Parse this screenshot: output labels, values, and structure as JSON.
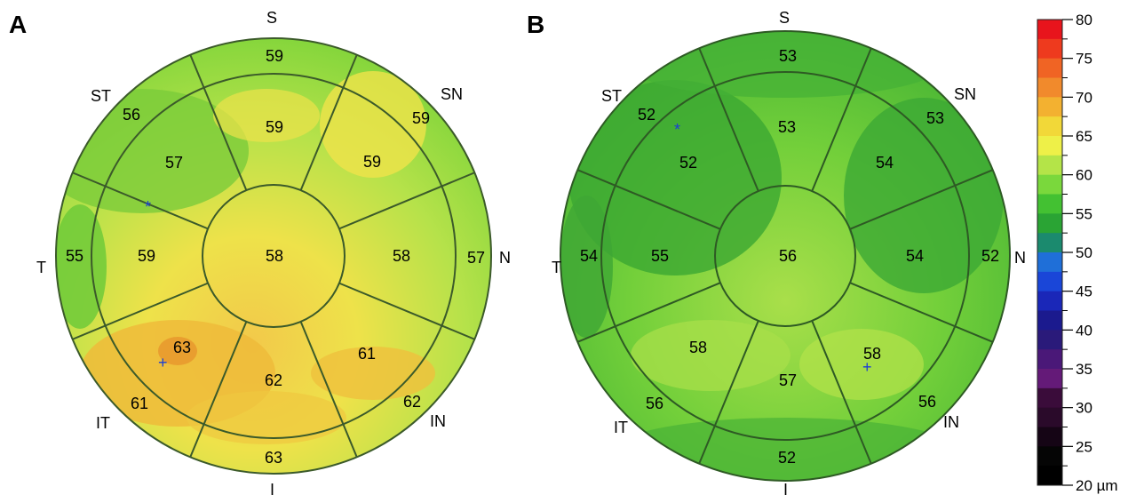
{
  "panels": [
    {
      "letter": "A",
      "directions": {
        "S": "S",
        "SN": "SN",
        "N": "N",
        "IN": "IN",
        "I": "I",
        "IT": "IT",
        "T": "T",
        "ST": "ST"
      },
      "center": "58",
      "inner": [
        "59",
        "59",
        "58",
        "61",
        "62",
        "63",
        "59",
        "57"
      ],
      "outer": [
        "59",
        "59",
        "57",
        "62",
        "63",
        "61",
        "55",
        "56"
      ],
      "markers": [
        "*",
        "+"
      ]
    },
    {
      "letter": "B",
      "directions": {
        "S": "S",
        "SN": "SN",
        "N": "N",
        "IN": "IN",
        "I": "I",
        "IT": "IT",
        "T": "T",
        "ST": "ST"
      },
      "center": "56",
      "inner": [
        "53",
        "54",
        "54",
        "58",
        "57",
        "58",
        "55",
        "52"
      ],
      "outer": [
        "53",
        "53",
        "52",
        "56",
        "52",
        "56",
        "54",
        "52"
      ],
      "markers": [
        "*",
        "+"
      ]
    }
  ],
  "colorbar": {
    "ticks": [
      "80",
      "75",
      "70",
      "65",
      "60",
      "55",
      "50",
      "45",
      "40",
      "35",
      "30",
      "25",
      "20 µm"
    ],
    "colors": [
      "#e8141c",
      "#ee3a1e",
      "#f06424",
      "#f18a2c",
      "#f3b130",
      "#f2d838",
      "#eef048",
      "#b4e448",
      "#7ad83c",
      "#43c132",
      "#2aa434",
      "#1b8a6e",
      "#1f6fd8",
      "#1a46d8",
      "#1a27b8",
      "#1b1a8e",
      "#2a1a7a",
      "#4a1878",
      "#641a78",
      "#3a0c3a",
      "#2a0a2a",
      "#150515",
      "#050505",
      "#000000"
    ],
    "colors_top_to_bottom_note": ""
  }
}
